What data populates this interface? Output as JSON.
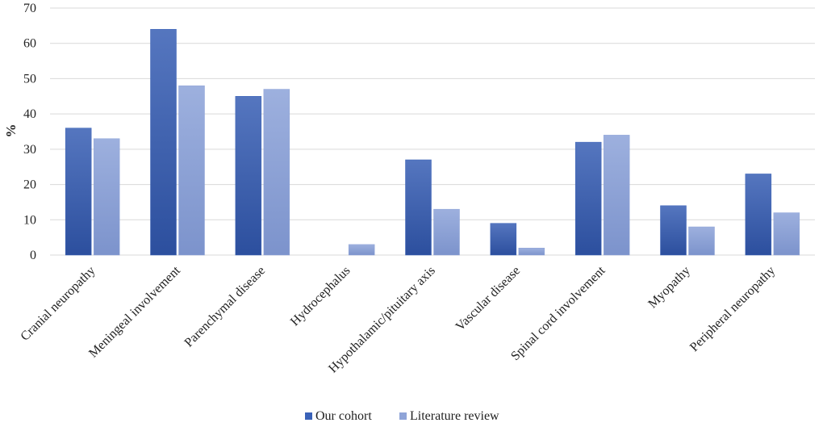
{
  "chart_data": {
    "type": "bar",
    "title": "",
    "xlabel": "",
    "ylabel": "%",
    "ylim": [
      0,
      70
    ],
    "yticks": [
      0,
      10,
      20,
      30,
      40,
      50,
      60,
      70
    ],
    "grid": true,
    "legend_position": "bottom",
    "categories": [
      "Cranial neuropathy",
      "Meningeal involvement",
      "Parenchymal disease",
      "Hydrocephalus",
      "Hypothalamic/pituitary axis",
      "Vascular disease",
      "Spinal cord involvement",
      "Myopathy",
      "Peripheral neuropathy"
    ],
    "series": [
      {
        "name": "Our cohort",
        "values": [
          36,
          64,
          45,
          0,
          27,
          9,
          32,
          14,
          23
        ],
        "color": "#3a62b8"
      },
      {
        "name": "Literature review",
        "values": [
          33,
          48,
          47,
          3,
          13,
          2,
          34,
          8,
          12
        ],
        "color": "#8fa4d8"
      }
    ]
  }
}
